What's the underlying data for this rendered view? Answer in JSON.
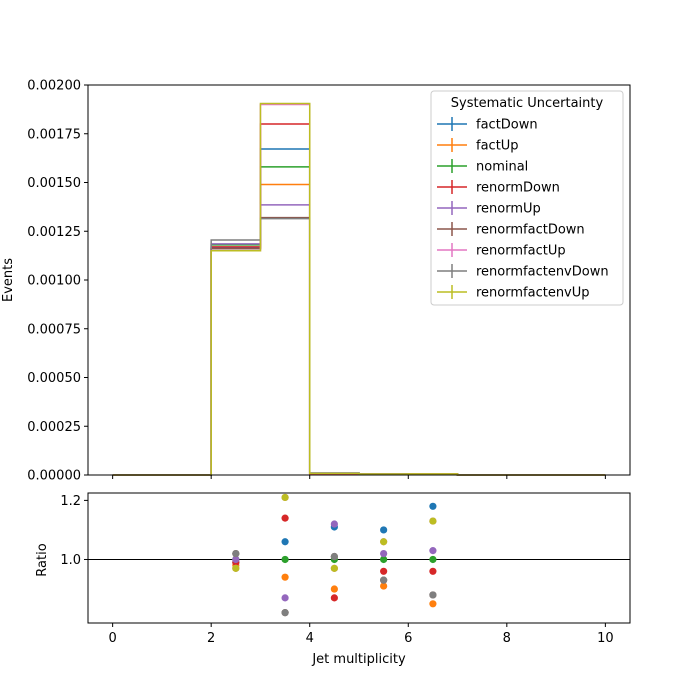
{
  "chart_data": [
    {
      "type": "line",
      "ylabel": "Events",
      "xlim": [
        -0.5,
        10.5
      ],
      "ylim": [
        0,
        0.002
      ],
      "yticks": [
        "0.00000",
        "0.00025",
        "0.00050",
        "0.00075",
        "0.00100",
        "0.00125",
        "0.00150",
        "0.00175",
        "0.00200"
      ],
      "ytick_values": [
        0,
        0.00025,
        0.0005,
        0.00075,
        0.001,
        0.00125,
        0.0015,
        0.00175,
        0.002
      ],
      "bin_edges": [
        0,
        1,
        2,
        3,
        4,
        5,
        6,
        7,
        8,
        9,
        10
      ],
      "legend_title": "Systematic Uncertainty",
      "legend_position": "upper right",
      "series": [
        {
          "name": "factDown",
          "color": "#1f77b4",
          "values": [
            0,
            0,
            0.001165,
            0.001672,
            1e-05,
            5e-06,
            6e-06,
            0,
            0,
            0
          ]
        },
        {
          "name": "factUp",
          "color": "#ff7f0e",
          "values": [
            0,
            0,
            0.00116,
            0.00149,
            8e-06,
            4e-06,
            4e-06,
            0,
            0,
            0
          ]
        },
        {
          "name": "nominal",
          "color": "#2ca02c",
          "values": [
            0,
            0,
            0.00118,
            0.00158,
            9e-06,
            5e-06,
            5e-06,
            0,
            0,
            0
          ]
        },
        {
          "name": "renormDown",
          "color": "#d62728",
          "values": [
            0,
            0,
            0.00117,
            0.0018,
            8e-06,
            5e-06,
            5e-06,
            0,
            0,
            0
          ]
        },
        {
          "name": "renormUp",
          "color": "#9467bd",
          "values": [
            0,
            0,
            0.001185,
            0.001385,
            1e-05,
            5e-06,
            5e-06,
            0,
            0,
            0
          ]
        },
        {
          "name": "renormfactDown",
          "color": "#8c564b",
          "values": [
            0,
            0,
            0.00116,
            0.00132,
            9e-06,
            5e-06,
            5e-06,
            0,
            0,
            0
          ]
        },
        {
          "name": "renormfactUp",
          "color": "#e377c2",
          "values": [
            0,
            0,
            0.00115,
            0.0019,
            9e-06,
            5e-06,
            5e-06,
            0,
            0,
            0
          ]
        },
        {
          "name": "renormfactenvDown",
          "color": "#7f7f7f",
          "values": [
            0,
            0,
            0.001205,
            0.001315,
            9e-06,
            5e-06,
            4e-06,
            0,
            0,
            0
          ]
        },
        {
          "name": "renormfactenvUp",
          "color": "#bcbd22",
          "values": [
            0,
            0,
            0.00115,
            0.001905,
            9e-06,
            5e-06,
            6e-06,
            0,
            0,
            0
          ]
        }
      ]
    },
    {
      "type": "scatter",
      "xlabel": "Jet multiplicity",
      "ylabel": "Ratio",
      "xlim": [
        -0.5,
        10.5
      ],
      "ylim": [
        0.785,
        1.225
      ],
      "xticks": [
        "0",
        "2",
        "4",
        "6",
        "8",
        "10"
      ],
      "xtick_values": [
        0,
        2,
        4,
        6,
        8,
        10
      ],
      "yticks": [
        "1.0",
        "1.2"
      ],
      "ytick_values": [
        1.0,
        1.2
      ],
      "reference_line": 1.0,
      "x": [
        2.5,
        3.5,
        4.5,
        5.5,
        6.5
      ],
      "series": [
        {
          "name": "factDown",
          "color": "#1f77b4",
          "values": [
            0.99,
            1.06,
            1.11,
            1.1,
            1.18
          ]
        },
        {
          "name": "factUp",
          "color": "#ff7f0e",
          "values": [
            0.98,
            0.94,
            0.9,
            0.91,
            0.85
          ]
        },
        {
          "name": "nominal",
          "color": "#2ca02c",
          "values": [
            1.0,
            1.0,
            1.0,
            1.0,
            1.0
          ]
        },
        {
          "name": "renormDown",
          "color": "#d62728",
          "values": [
            0.99,
            1.14,
            0.87,
            0.96,
            0.96
          ]
        },
        {
          "name": "renormUp",
          "color": "#9467bd",
          "values": [
            1.0,
            0.87,
            1.12,
            1.02,
            1.03
          ]
        },
        {
          "name": "renormfactDown",
          "color": "#8c564b",
          "values": [
            1.02,
            0.82,
            1.01,
            0.93,
            0.88
          ]
        },
        {
          "name": "renormfactUp",
          "color": "#e377c2",
          "values": [
            0.97,
            1.21,
            0.97,
            1.06,
            1.13
          ]
        },
        {
          "name": "renormfactenvDown",
          "color": "#7f7f7f",
          "values": [
            1.02,
            0.82,
            1.01,
            0.93,
            0.88
          ]
        },
        {
          "name": "renormfactenvUp",
          "color": "#bcbd22",
          "values": [
            0.97,
            1.21,
            0.97,
            1.06,
            1.13
          ]
        }
      ]
    }
  ]
}
